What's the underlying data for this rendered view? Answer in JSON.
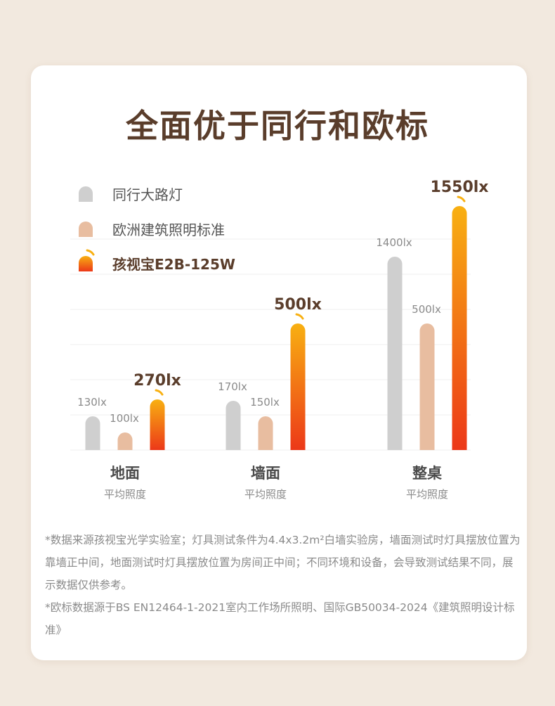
{
  "title": "全面优于同行和欧标",
  "colors": {
    "peer": "#cfcfcf",
    "eu": "#e8bda0",
    "brand_top": "#f8b012",
    "brand_bottom": "#ec3818",
    "label_gray": "#8a8a8a",
    "label_brand": "#5a3d2b",
    "category": "#4a4a4a"
  },
  "chart_data": {
    "type": "bar",
    "categories": [
      {
        "name": "地面",
        "sub": "平均照度"
      },
      {
        "name": "墙面",
        "sub": "平均照度"
      },
      {
        "name": "整桌",
        "sub": "平均照度"
      }
    ],
    "series": [
      {
        "name": "同行大路灯",
        "values": [
          130,
          170,
          1400
        ],
        "labels": [
          "130lx",
          "170lx",
          "1400lx"
        ]
      },
      {
        "name": "欧洲建筑照明标准",
        "values": [
          100,
          150,
          500
        ],
        "labels": [
          "100lx",
          "150lx",
          "500lx"
        ]
      },
      {
        "name": "孩视宝E2B-125W",
        "values": [
          270,
          500,
          1550
        ],
        "labels": [
          "270lx",
          "500lx",
          "1550lx"
        ]
      }
    ],
    "grid": true,
    "legend": "top-left",
    "scale": "non-linear (visual)"
  },
  "notes": [
    "*数据来源孩视宝光学实验室；灯具测试条件为4.4x3.2m²白墙实验房，墙面测试时灯具摆放位置为靠墙正中间，地面测试时灯具摆放位置为房间正中间；不同环境和设备，会导致测试结果不同，展示数据仅供参考。",
    "*欧标数据源于BS EN12464-1-2021室内工作场所照明、国际GB50034-2024《建筑照明设计标准》"
  ]
}
